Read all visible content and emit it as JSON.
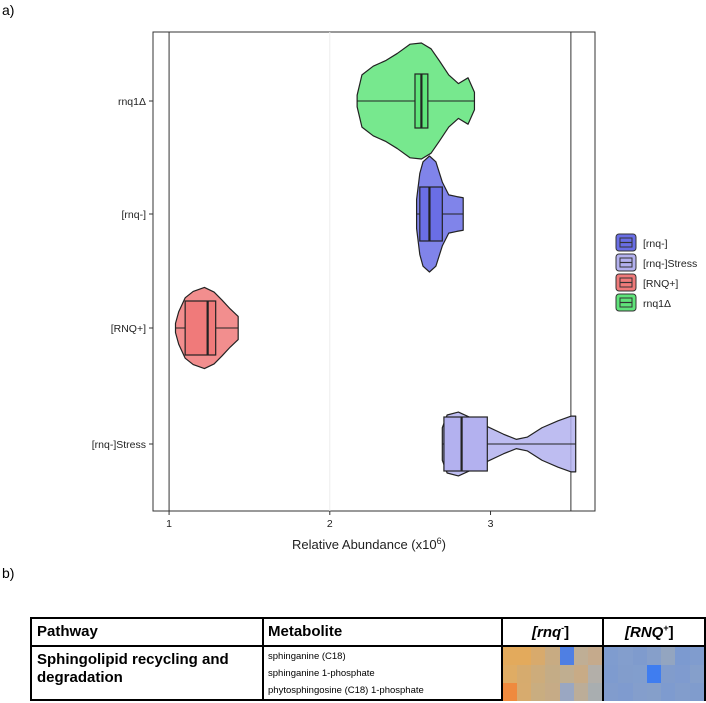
{
  "panel_a_label": "a)",
  "panel_b_label": "b)",
  "chart_data": {
    "type": "violin",
    "xlabel": "Relative Abundance (x10",
    "xlabel_superscript": "6",
    "xlabel_close": ")",
    "xlim": [
      0.9,
      3.65
    ],
    "xticks": [
      1,
      2,
      3
    ],
    "xtick_labels": [
      "1",
      "2",
      "3"
    ],
    "reference_lines": [
      1,
      3.5
    ],
    "legend_position": "right",
    "categories": [
      "rnq1Δ",
      "[rnq-]",
      "[RNQ+]",
      "[rnq-]Stress"
    ],
    "series": [
      {
        "name": "rnq1Δ",
        "color": "#5fe47a",
        "min": 2.17,
        "q1": 2.53,
        "median": 2.57,
        "q3": 2.61,
        "max": 2.9,
        "profile": [
          [
            2.17,
            0.1
          ],
          [
            2.2,
            0.45
          ],
          [
            2.27,
            0.6
          ],
          [
            2.35,
            0.7
          ],
          [
            2.42,
            0.82
          ],
          [
            2.5,
            0.98
          ],
          [
            2.57,
            1.0
          ],
          [
            2.63,
            0.9
          ],
          [
            2.68,
            0.7
          ],
          [
            2.74,
            0.45
          ],
          [
            2.8,
            0.3
          ],
          [
            2.86,
            0.4
          ],
          [
            2.9,
            0.15
          ]
        ]
      },
      {
        "name": "[rnq-]",
        "color": "#6a6ee6",
        "min": 2.54,
        "q1": 2.56,
        "median": 2.62,
        "q3": 2.7,
        "max": 2.83,
        "profile": [
          [
            2.54,
            0.25
          ],
          [
            2.56,
            0.7
          ],
          [
            2.58,
            0.9
          ],
          [
            2.62,
            1.0
          ],
          [
            2.66,
            0.9
          ],
          [
            2.7,
            0.55
          ],
          [
            2.74,
            0.33
          ],
          [
            2.79,
            0.3
          ],
          [
            2.83,
            0.28
          ]
        ]
      },
      {
        "name": "[RNQ+]",
        "color": "#f07a7a",
        "min": 1.04,
        "q1": 1.1,
        "median": 1.24,
        "q3": 1.29,
        "max": 1.43,
        "profile": [
          [
            1.04,
            0.08
          ],
          [
            1.06,
            0.28
          ],
          [
            1.1,
            0.52
          ],
          [
            1.15,
            0.63
          ],
          [
            1.22,
            0.7
          ],
          [
            1.28,
            0.62
          ],
          [
            1.33,
            0.48
          ],
          [
            1.38,
            0.33
          ],
          [
            1.43,
            0.2
          ]
        ]
      },
      {
        "name": "[rnq-]Stress",
        "color": "#b3b1ef",
        "min": 2.7,
        "q1": 2.71,
        "median": 2.82,
        "q3": 2.98,
        "max": 3.53,
        "profile": [
          [
            2.7,
            0.28
          ],
          [
            2.73,
            0.5
          ],
          [
            2.8,
            0.55
          ],
          [
            2.88,
            0.45
          ],
          [
            2.98,
            0.3
          ],
          [
            3.08,
            0.17
          ],
          [
            3.16,
            0.08
          ],
          [
            3.23,
            0.12
          ],
          [
            3.32,
            0.28
          ],
          [
            3.42,
            0.4
          ],
          [
            3.5,
            0.48
          ],
          [
            3.53,
            0.48
          ]
        ]
      }
    ],
    "legend": [
      {
        "label": "[rnq-]",
        "color": "#6a6ee6"
      },
      {
        "label": "[rnq-]Stress",
        "color": "#b3b1ef"
      },
      {
        "label": "[RNQ+]",
        "color": "#f07a7a"
      },
      {
        "label": "rnq1Δ",
        "color": "#5fe47a"
      }
    ]
  },
  "table": {
    "headers": {
      "pathway": "Pathway",
      "metabolite": "Metabolite",
      "col_rnq_minus_base": "[rnq",
      "col_rnq_minus_sup": "-",
      "col_rnq_plus_base": "[RNQ",
      "col_rnq_plus_sup": "+",
      "bracket_close": "]"
    },
    "pathway": "Sphingolipid recycling and degradation",
    "metabolites": [
      "sphinganine (C18)",
      "sphinganine 1-phosphate",
      "phytosphingosine (C18) 1-phosphate"
    ],
    "heatmap_rnq_minus": [
      [
        "#e3aa5c",
        "#e3aa5c",
        "#d8aa6c",
        "#c8ab82",
        "#4f7fe3",
        "#bfae95",
        "#c5aa8c"
      ],
      [
        "#dfac64",
        "#d6ab6e",
        "#cdac7b",
        "#c4ac86",
        "#c0ae90",
        "#c8ab86",
        "#b3afa9"
      ],
      [
        "#ef8a3e",
        "#d7ab6e",
        "#c9ad80",
        "#c6ab86",
        "#9aa7c2",
        "#bcad98",
        "#a9aeb0"
      ]
    ],
    "heatmap_rnq_plus": [
      [
        "#7f9ccf",
        "#839ecd",
        "#7f9bcd",
        "#869fca",
        "#93a5c0",
        "#7c9ad0",
        "#809cce"
      ],
      [
        "#7e9bcf",
        "#829dcc",
        "#829ecd",
        "#3f7df0",
        "#819ccc",
        "#7f9bcf",
        "#859fcb"
      ],
      [
        "#819ccd",
        "#7f9bcf",
        "#849ecc",
        "#859fca",
        "#7e9bcf",
        "#829dcc",
        "#809ccd"
      ]
    ]
  }
}
